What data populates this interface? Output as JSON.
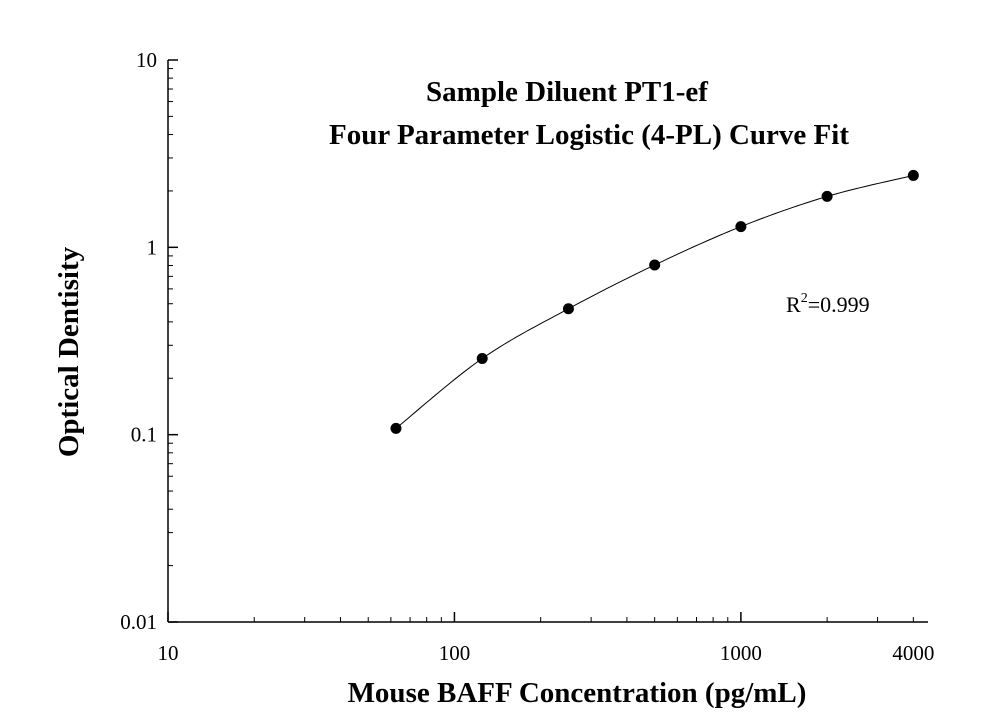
{
  "chart_data": {
    "type": "scatter",
    "title": "Sample Diluent PT1-ef",
    "subtitle": "Four Parameter Logistic (4-PL) Curve Fit",
    "xlabel": "Mouse BAFF Concentration (pg/mL)",
    "ylabel": "Optical Dentisity",
    "x_scale": "log",
    "y_scale": "log",
    "xlim": [
      10,
      4500
    ],
    "ylim": [
      0.01,
      10
    ],
    "x_ticks": [
      10,
      100,
      1000,
      4000
    ],
    "x_tick_labels": [
      "10",
      "100",
      "1000",
      "4000"
    ],
    "y_ticks": [
      0.01,
      0.1,
      1,
      10
    ],
    "y_tick_labels": [
      "0.01",
      "0.1",
      "1",
      "10"
    ],
    "grid": false,
    "series": [
      {
        "x": [
          62.5,
          125,
          250,
          500,
          1000,
          2000,
          4000
        ],
        "y": [
          0.108,
          0.255,
          0.47,
          0.805,
          1.29,
          1.87,
          2.42
        ]
      }
    ],
    "fit_curve": {
      "x_range": [
        62.5,
        4000
      ]
    },
    "annotation": {
      "prefix": "R",
      "superscript": "2",
      "suffix": "=0.999"
    }
  }
}
